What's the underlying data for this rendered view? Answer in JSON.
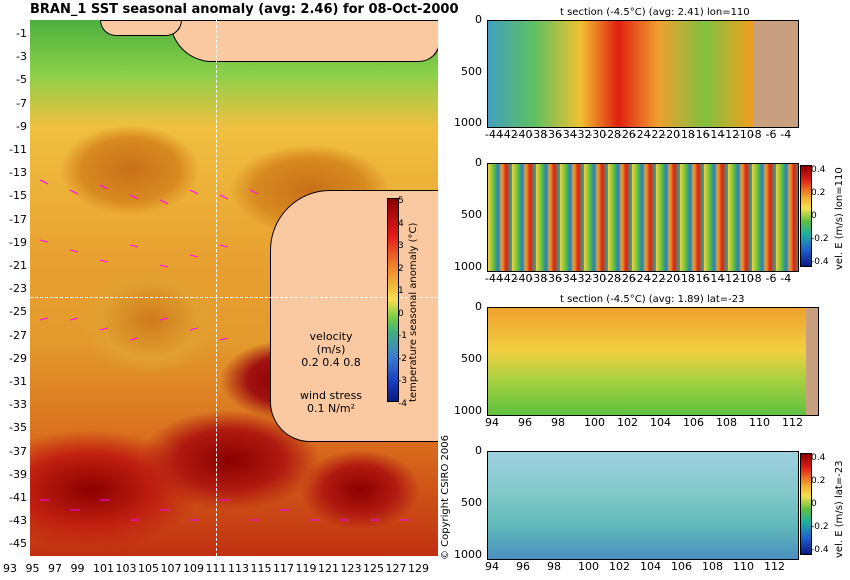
{
  "map": {
    "title": "BRAN_1  SST seasonal anomaly (avg: 2.46) for 08-Oct-2000",
    "y_ticks": [
      "-1",
      "-3",
      "-5",
      "-7",
      "-9",
      "-11",
      "-13",
      "-15",
      "-17",
      "-19",
      "-21",
      "-23",
      "-25",
      "-27",
      "-29",
      "-31",
      "-33",
      "-35",
      "-37",
      "-39",
      "-41",
      "-43",
      "-45"
    ],
    "x_ticks": [
      "93",
      "95",
      "97",
      "99",
      "101",
      "103",
      "105",
      "107",
      "109",
      "111",
      "113",
      "115",
      "117",
      "119",
      "121",
      "123",
      "125",
      "127",
      "129"
    ],
    "legend_velocity": "velocity (m/s)",
    "legend_velocity_values": "0.2 0.4 0.8",
    "legend_wind": "wind stress",
    "legend_wind_value": "0.1 N/m²",
    "colorbar_label": "temperature seasonal anomaly (°C)",
    "colorbar_ticks": [
      "5",
      "4",
      "3",
      "2",
      "1",
      "0",
      "-1",
      "-2",
      "-3",
      "-4"
    ],
    "copyright": "© Copyright CSIRO 2006",
    "colors": {
      "land": "#fbc9a1",
      "guide_line": "#ffffff",
      "vectors": "#ff00ff"
    }
  },
  "panels": [
    {
      "title": "t section (-4.5°C) (avg: 2.41) lon=110",
      "y_ticks": [
        "0",
        "500",
        "1000"
      ],
      "x_ticks": [
        "-44",
        "-42",
        "-40",
        "-38",
        "-36",
        "-34",
        "-32",
        "-30",
        "-28",
        "-26",
        "-24",
        "-22",
        "-20",
        "-18",
        "-16",
        "-14",
        "-12",
        "-10",
        "-8",
        "-6",
        "-4"
      ],
      "side_label": ""
    },
    {
      "title": "",
      "y_ticks": [
        "0",
        "500",
        "1000"
      ],
      "x_ticks": [
        "-44",
        "-42",
        "-40",
        "-38",
        "-36",
        "-34",
        "-32",
        "-30",
        "-28",
        "-26",
        "-24",
        "-22",
        "-20",
        "-18",
        "-16",
        "-14",
        "-12",
        "-10",
        "-8",
        "-6",
        "-4"
      ],
      "side_label": "vel. E (m/s) lon=110",
      "cbar_ticks": [
        "0.4",
        "0.2",
        "0",
        "-0.2",
        "-0.4"
      ]
    },
    {
      "title": "t section (-4.5°C) (avg: 1.89) lat=-23",
      "y_ticks": [
        "0",
        "500",
        "1000"
      ],
      "x_ticks": [
        "94",
        "96",
        "98",
        "100",
        "102",
        "104",
        "106",
        "108",
        "110",
        "112"
      ],
      "side_label": ""
    },
    {
      "title": "",
      "y_ticks": [
        "0",
        "500",
        "1000"
      ],
      "x_ticks": [
        "94",
        "96",
        "98",
        "100",
        "102",
        "104",
        "106",
        "108",
        "110",
        "112"
      ],
      "side_label": "vel. E (m/s) lat=-23",
      "cbar_ticks": [
        "0.4",
        "0.2",
        "0",
        "-0.2",
        "-0.4"
      ]
    }
  ]
}
